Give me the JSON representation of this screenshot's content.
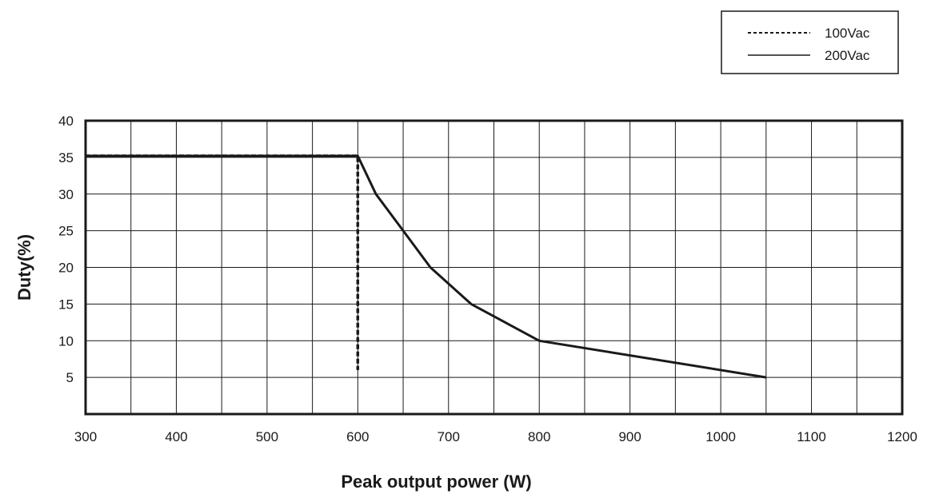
{
  "chart_data": {
    "type": "line",
    "title": "",
    "xlabel": "Peak output power (W)",
    "ylabel": "Duty(%)",
    "xlim": [
      300,
      1200
    ],
    "ylim": [
      0,
      40
    ],
    "x_ticks": [
      300,
      400,
      500,
      600,
      700,
      800,
      900,
      1000,
      1100,
      1200
    ],
    "y_ticks": [
      5,
      10,
      15,
      20,
      25,
      30,
      35,
      40
    ],
    "x_grid": [
      300,
      350,
      400,
      450,
      500,
      550,
      600,
      650,
      700,
      750,
      800,
      850,
      900,
      950,
      1000,
      1050,
      1100,
      1150,
      1200
    ],
    "grid": true,
    "legend_position": "top-right, outside plot",
    "series": [
      {
        "name": "100Vac",
        "style": "dashed",
        "color": "#1a1a1a",
        "points": [
          [
            300,
            35.2
          ],
          [
            600,
            35.2
          ],
          [
            600,
            6
          ]
        ]
      },
      {
        "name": "200Vac",
        "style": "solid",
        "color": "#1a1a1a",
        "points": [
          [
            300,
            35.2
          ],
          [
            600,
            35.2
          ],
          [
            620,
            30
          ],
          [
            650,
            25
          ],
          [
            680,
            20
          ],
          [
            725,
            15
          ],
          [
            800,
            10
          ],
          [
            1050,
            5
          ]
        ]
      }
    ]
  }
}
